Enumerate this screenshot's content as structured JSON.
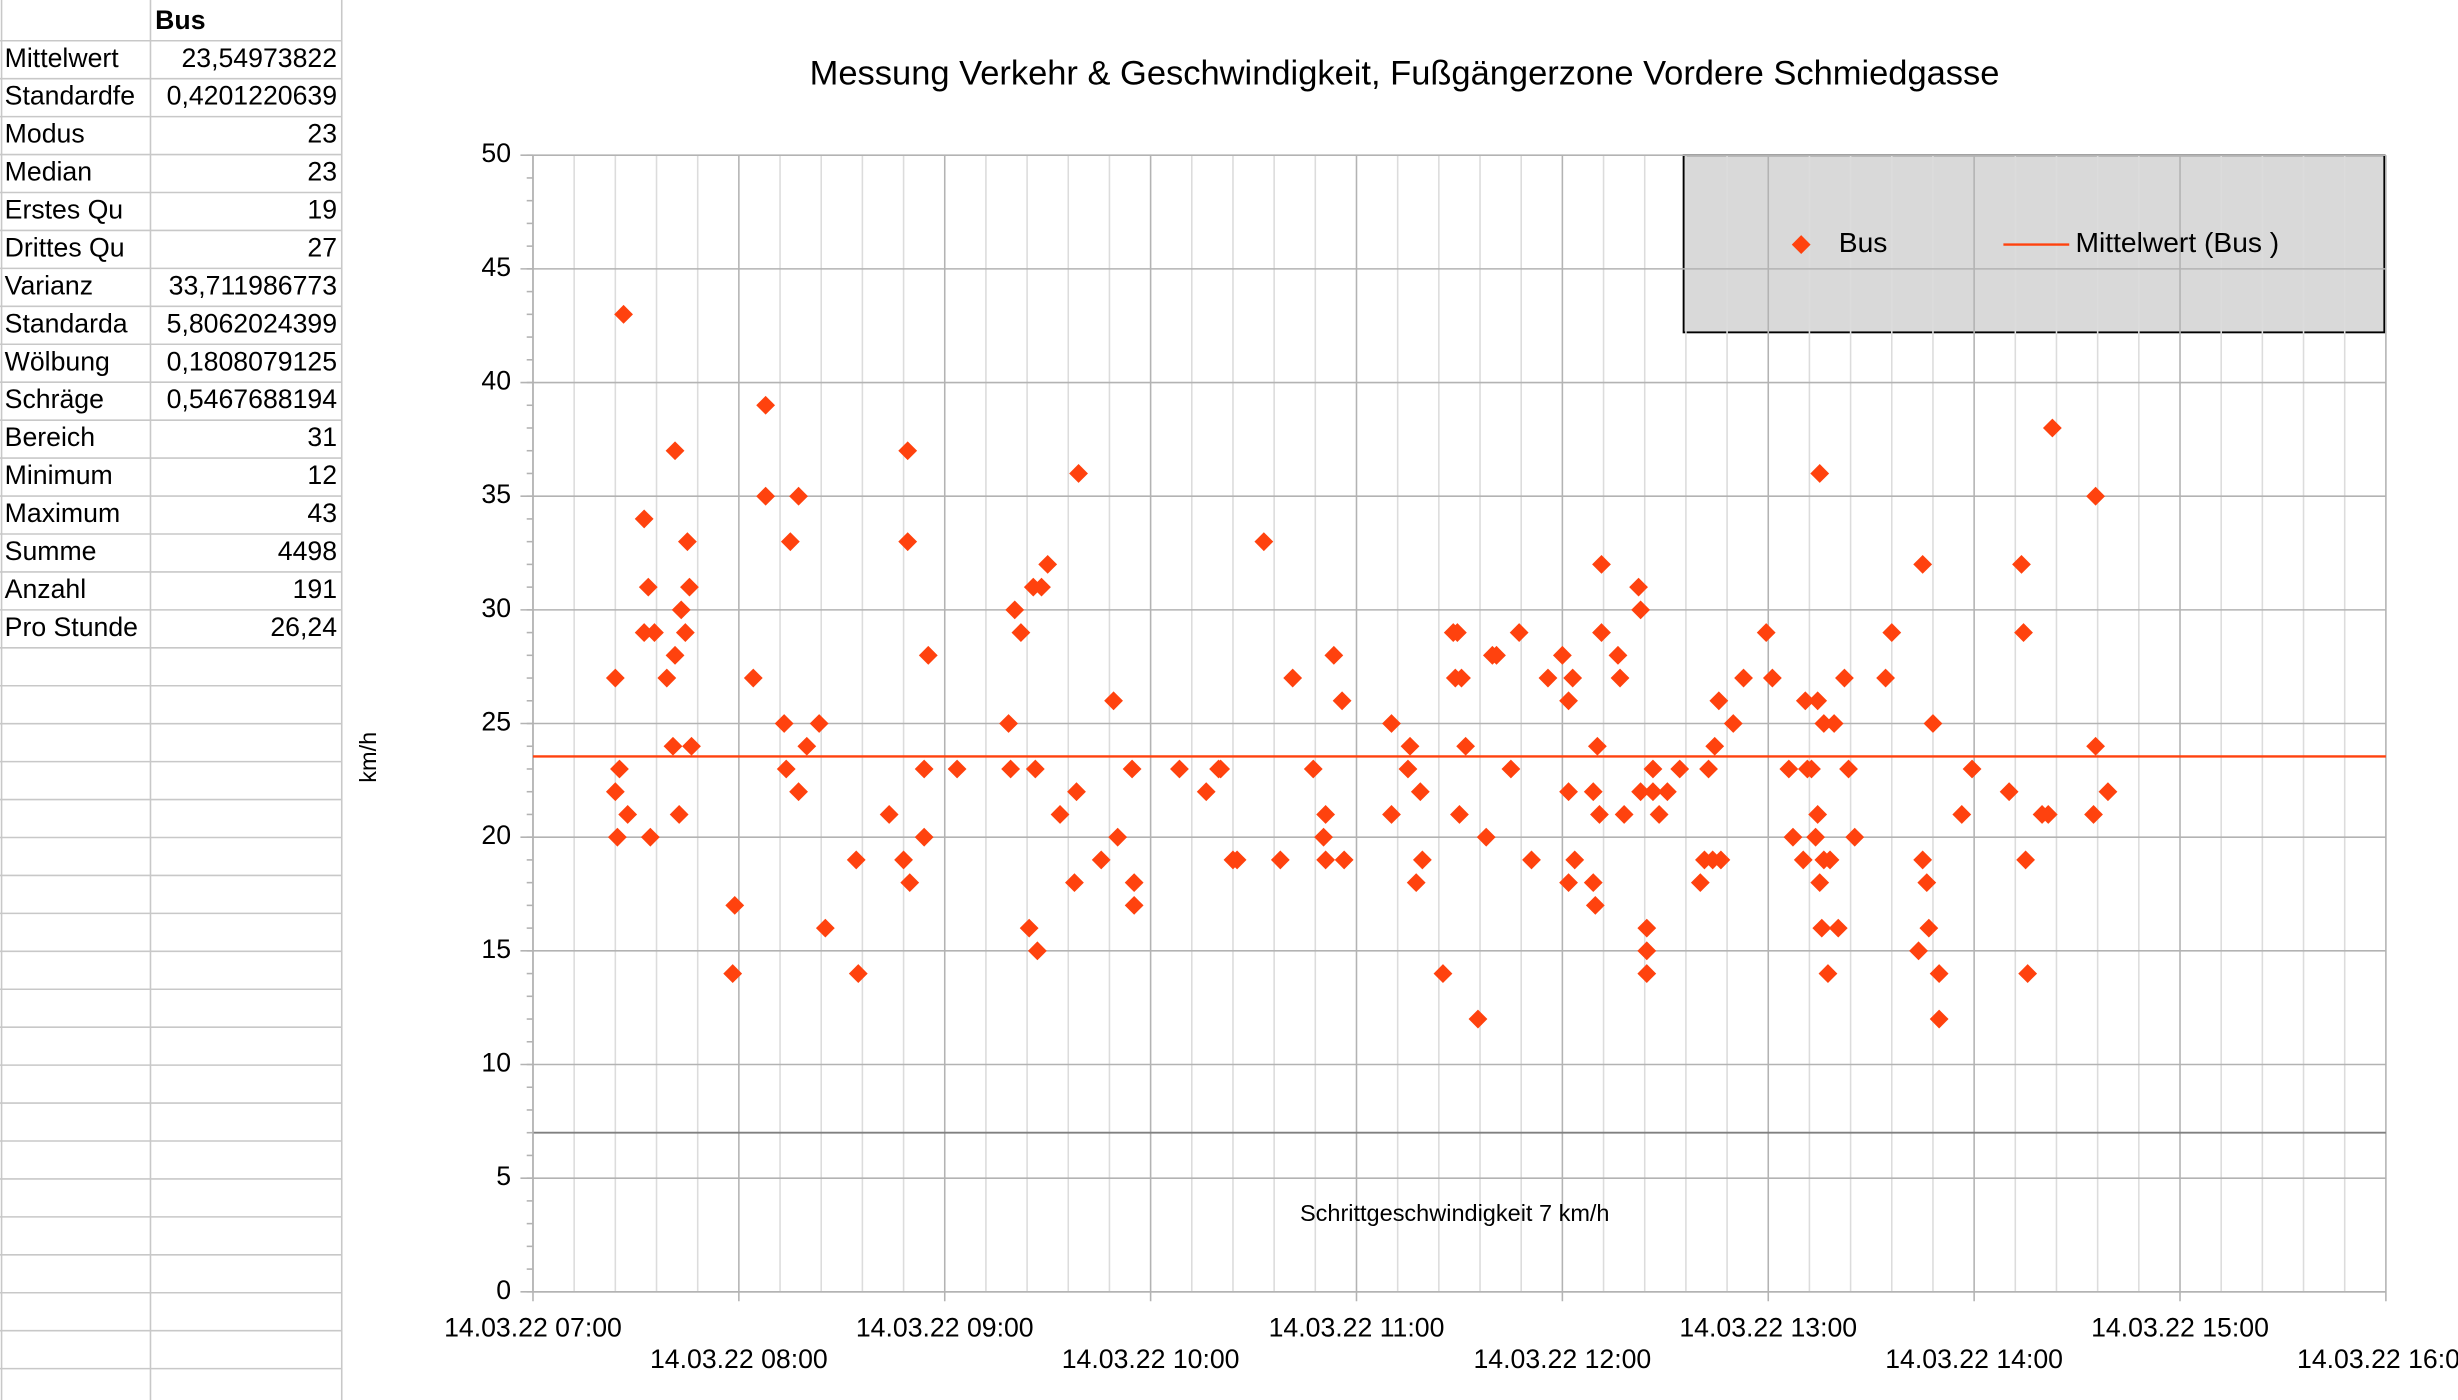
{
  "table": {
    "header": "Bus",
    "rows": [
      [
        "Mittelwert",
        "23,54973822"
      ],
      [
        "Standardfe",
        "0,4201220639"
      ],
      [
        "Modus",
        "23"
      ],
      [
        "Median",
        "23"
      ],
      [
        "Erstes Qu",
        "19"
      ],
      [
        "Drittes Qu",
        "27"
      ],
      [
        "Varianz",
        "33,711986773"
      ],
      [
        "Standarda",
        "5,8062024399"
      ],
      [
        "Wölbung",
        "0,1808079125"
      ],
      [
        "Schräge",
        "0,5467688194"
      ],
      [
        "Bereich",
        "31"
      ],
      [
        "Minimum",
        "12"
      ],
      [
        "Maximum",
        "43"
      ],
      [
        "Summe",
        "4498"
      ],
      [
        "Anzahl",
        "191"
      ],
      [
        "Pro Stunde",
        "26,24"
      ]
    ]
  },
  "chart_data": {
    "type": "scatter",
    "title": "Messung Verkehr & Geschwindigkeit, Fußgängerzone Vordere Schmiedgasse",
    "y_label": "km/h",
    "annotation": {
      "text": "Schrittgeschwindigkeit 7 km/h",
      "value": 7
    },
    "xlim": [
      7,
      16
    ],
    "ylim": [
      0,
      50
    ],
    "xticks": [
      {
        "value": 7,
        "label": "14.03.22 07:00"
      },
      {
        "value": 8,
        "label": "14.03.22 08:00"
      },
      {
        "value": 9,
        "label": "14.03.22 09:00"
      },
      {
        "value": 10,
        "label": "14.03.22 10:00"
      },
      {
        "value": 11,
        "label": "14.03.22 11:00"
      },
      {
        "value": 12,
        "label": "14.03.22 12:00"
      },
      {
        "value": 13,
        "label": "14.03.22 13:00"
      },
      {
        "value": 14,
        "label": "14.03.22 14:00"
      },
      {
        "value": 15,
        "label": "14.03.22 15:00"
      },
      {
        "value": 16,
        "label": "14.03.22 16:00"
      }
    ],
    "yticks": [
      0,
      5,
      10,
      15,
      20,
      25,
      30,
      35,
      40,
      45,
      50
    ],
    "grid": true,
    "series": [
      {
        "name": "Bus",
        "color": "#ff420e",
        "x": [
          7.4,
          7.4,
          7.41,
          7.42,
          7.44,
          7.46,
          7.54,
          7.56,
          7.54,
          7.59,
          7.57,
          7.65,
          7.69,
          7.68,
          7.69,
          7.71,
          7.72,
          7.75,
          7.74,
          7.76,
          7.77,
          7.98,
          7.97,
          8.07,
          8.13,
          8.13,
          8.22,
          8.25,
          8.23,
          8.29,
          8.29,
          8.33,
          8.39,
          8.42,
          8.57,
          8.58,
          8.73,
          8.82,
          8.82,
          8.8,
          8.83,
          8.9,
          8.92,
          8.9,
          9.06,
          9.31,
          9.34,
          9.37,
          9.32,
          9.41,
          9.43,
          9.45,
          9.47,
          9.5,
          9.44,
          9.56,
          9.63,
          9.65,
          9.64,
          9.76,
          9.82,
          9.84,
          9.91,
          9.92,
          9.92,
          10.14,
          10.27,
          10.33,
          10.34,
          10.4,
          10.42,
          10.55,
          10.63,
          10.69,
          10.79,
          10.85,
          10.84,
          10.85,
          10.89,
          10.93,
          10.94,
          11.17,
          11.17,
          11.25,
          11.26,
          11.29,
          11.31,
          11.32,
          11.42,
          11.47,
          11.49,
          11.48,
          11.51,
          11.5,
          11.53,
          11.59,
          11.63,
          11.66,
          11.68,
          11.75,
          11.79,
          11.85,
          11.93,
          12.0,
          12.03,
          12.03,
          12.05,
          12.03,
          12.06,
          12.15,
          12.16,
          12.15,
          12.17,
          12.18,
          12.19,
          12.19,
          12.27,
          12.28,
          12.3,
          12.37,
          12.38,
          12.38,
          12.41,
          12.41,
          12.41,
          12.44,
          12.44,
          12.47,
          12.51,
          12.57,
          12.67,
          12.69,
          12.71,
          12.74,
          12.76,
          12.77,
          12.73,
          12.83,
          12.88,
          12.99,
          13.02,
          13.1,
          13.12,
          13.17,
          13.18,
          13.19,
          13.21,
          13.23,
          13.24,
          13.24,
          13.25,
          13.25,
          13.26,
          13.27,
          13.27,
          13.29,
          13.3,
          13.32,
          13.34,
          13.37,
          13.39,
          13.42,
          13.57,
          13.6,
          13.73,
          13.75,
          13.75,
          13.77,
          13.78,
          13.8,
          13.83,
          13.83,
          13.94,
          13.99,
          14.17,
          14.23,
          14.24,
          14.25,
          14.26,
          14.33,
          14.36,
          14.38,
          14.58,
          14.59,
          14.59,
          14.65
        ],
        "values": [
          27,
          22,
          20,
          23,
          43,
          21,
          34,
          31,
          29,
          29,
          20,
          27,
          37,
          24,
          28,
          21,
          30,
          33,
          29,
          31,
          24,
          17,
          14,
          27,
          39,
          35,
          25,
          33,
          23,
          35,
          22,
          24,
          25,
          16,
          19,
          14,
          21,
          37,
          33,
          19,
          18,
          20,
          28,
          23,
          23,
          25,
          30,
          29,
          23,
          16,
          31,
          15,
          31,
          32,
          23,
          21,
          18,
          36,
          22,
          19,
          26,
          20,
          23,
          18,
          17,
          23,
          22,
          23,
          23,
          19,
          19,
          33,
          19,
          27,
          23,
          21,
          20,
          19,
          28,
          26,
          19,
          25,
          21,
          23,
          24,
          18,
          22,
          19,
          14,
          29,
          29,
          27,
          27,
          21,
          24,
          12,
          20,
          28,
          28,
          23,
          29,
          19,
          27,
          28,
          22,
          26,
          27,
          18,
          19,
          18,
          17,
          22,
          24,
          21,
          32,
          29,
          28,
          27,
          21,
          31,
          30,
          22,
          16,
          15,
          14,
          23,
          22,
          21,
          22,
          23,
          18,
          19,
          23,
          24,
          26,
          19,
          19,
          25,
          27,
          29,
          27,
          23,
          20,
          19,
          26,
          23,
          23,
          20,
          26,
          21,
          18,
          36,
          16,
          25,
          19,
          14,
          19,
          25,
          16,
          27,
          23,
          20,
          27,
          29,
          15,
          32,
          19,
          18,
          16,
          25,
          14,
          12,
          21,
          23,
          22,
          32,
          29,
          19,
          14,
          21,
          21,
          38,
          21,
          35,
          24,
          22
        ]
      },
      {
        "name": "Mittelwert (Bus  )",
        "color": "#ff420e",
        "value": 23.54973822
      }
    ]
  }
}
